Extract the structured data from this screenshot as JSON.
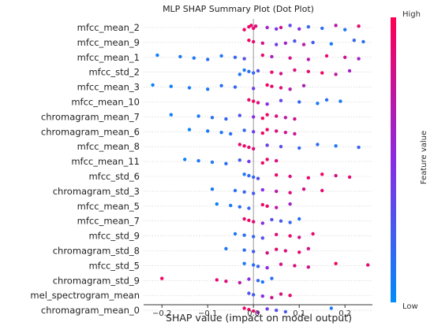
{
  "chart_data": {
    "type": "scatter",
    "title": "MLP SHAP Summary Plot (Dot Plot)",
    "xlabel": "SHAP value (impact on model output)",
    "x_ticks": [
      -0.2,
      -0.1,
      0.0,
      0.1,
      0.2
    ],
    "x_tick_labels": [
      "−0.2",
      "−0.1",
      "0.0",
      "0.1",
      "0.2"
    ],
    "xlim": [
      -0.24,
      0.26
    ],
    "grid": true,
    "colorbar": {
      "high_label": "High",
      "low_label": "Low",
      "title": "Feature value",
      "high_color": "#ff0052",
      "mid_color": "#8a2be2",
      "low_color": "#008bfb"
    },
    "features": [
      "mfcc_mean_2",
      "mfcc_mean_9",
      "mfcc_mean_1",
      "mfcc_std_2",
      "mfcc_mean_3",
      "mfcc_mean_10",
      "chromagram_mean_7",
      "chromagram_mean_6",
      "mfcc_mean_8",
      "mfcc_mean_11",
      "mfcc_std_6",
      "chromagram_std_3",
      "mfcc_mean_5",
      "mfcc_mean_7",
      "mfcc_std_9",
      "chromagram_std_8",
      "mfcc_std_5",
      "chromagram_std_9",
      "mel_spectrogram_mean",
      "chromagram_mean_0"
    ],
    "points": [
      [
        [
          -0.005,
          0.95
        ],
        [
          -0.01,
          0.9
        ],
        [
          0.0,
          0.9
        ],
        [
          -0.02,
          0.95
        ],
        [
          0.005,
          0.85
        ],
        [
          0.03,
          0.6
        ],
        [
          0.05,
          0.45
        ],
        [
          0.08,
          0.35
        ],
        [
          0.12,
          0.2
        ],
        [
          0.15,
          0.15
        ],
        [
          0.2,
          0.1
        ],
        [
          0.23,
          0.9
        ],
        [
          0.06,
          0.8
        ],
        [
          0.1,
          0.5
        ],
        [
          0.18,
          0.7
        ]
      ],
      [
        [
          -0.01,
          0.95
        ],
        [
          0.0,
          0.9
        ],
        [
          0.02,
          0.8
        ],
        [
          0.05,
          0.4
        ],
        [
          0.09,
          0.3
        ],
        [
          0.13,
          0.25
        ],
        [
          0.17,
          0.1
        ],
        [
          0.22,
          0.2
        ],
        [
          0.24,
          0.15
        ],
        [
          0.07,
          0.6
        ],
        [
          0.11,
          0.7
        ]
      ],
      [
        [
          -0.21,
          0.05
        ],
        [
          -0.16,
          0.1
        ],
        [
          -0.13,
          0.1
        ],
        [
          -0.1,
          0.15
        ],
        [
          -0.07,
          0.1
        ],
        [
          -0.04,
          0.2
        ],
        [
          -0.02,
          0.3
        ],
        [
          0.02,
          0.9
        ],
        [
          0.04,
          0.6
        ],
        [
          0.08,
          0.8
        ],
        [
          0.12,
          0.7
        ],
        [
          0.16,
          0.9
        ],
        [
          0.2,
          0.8
        ],
        [
          0.23,
          0.6
        ]
      ],
      [
        [
          -0.02,
          0.1
        ],
        [
          -0.01,
          0.15
        ],
        [
          0.0,
          0.2
        ],
        [
          -0.03,
          0.1
        ],
        [
          0.01,
          0.3
        ],
        [
          0.04,
          0.9
        ],
        [
          0.06,
          0.8
        ],
        [
          0.09,
          0.85
        ],
        [
          0.12,
          0.9
        ],
        [
          0.15,
          0.95
        ],
        [
          0.18,
          0.7
        ],
        [
          0.21,
          0.6
        ]
      ],
      [
        [
          -0.22,
          0.05
        ],
        [
          -0.18,
          0.05
        ],
        [
          -0.14,
          0.1
        ],
        [
          -0.1,
          0.1
        ],
        [
          -0.07,
          0.15
        ],
        [
          -0.04,
          0.2
        ],
        [
          0.0,
          0.4
        ],
        [
          0.03,
          0.95
        ],
        [
          0.04,
          0.9
        ],
        [
          0.06,
          0.85
        ],
        [
          0.08,
          0.7
        ],
        [
          0.11,
          0.65
        ]
      ],
      [
        [
          -0.01,
          0.9
        ],
        [
          0.0,
          0.95
        ],
        [
          0.01,
          0.85
        ],
        [
          0.03,
          0.5
        ],
        [
          0.06,
          0.35
        ],
        [
          0.1,
          0.2
        ],
        [
          0.14,
          0.1
        ],
        [
          0.16,
          0.15
        ],
        [
          0.19,
          0.1
        ]
      ],
      [
        [
          -0.18,
          0.05
        ],
        [
          -0.12,
          0.1
        ],
        [
          -0.09,
          0.15
        ],
        [
          -0.06,
          0.2
        ],
        [
          -0.03,
          0.3
        ],
        [
          0.0,
          0.5
        ],
        [
          0.02,
          0.95
        ],
        [
          0.03,
          0.9
        ],
        [
          0.05,
          0.85
        ],
        [
          0.07,
          0.7
        ],
        [
          0.09,
          0.8
        ]
      ],
      [
        [
          -0.14,
          0.05
        ],
        [
          -0.1,
          0.1
        ],
        [
          -0.07,
          0.1
        ],
        [
          -0.05,
          0.15
        ],
        [
          -0.02,
          0.2
        ],
        [
          0.0,
          0.4
        ],
        [
          0.02,
          0.95
        ],
        [
          0.03,
          0.9
        ],
        [
          0.05,
          0.85
        ],
        [
          0.07,
          0.8
        ],
        [
          0.09,
          0.75
        ]
      ],
      [
        [
          -0.03,
          0.9
        ],
        [
          -0.02,
          0.95
        ],
        [
          -0.01,
          0.9
        ],
        [
          0.0,
          0.85
        ],
        [
          0.03,
          0.4
        ],
        [
          0.06,
          0.3
        ],
        [
          0.1,
          0.2
        ],
        [
          0.14,
          0.15
        ],
        [
          0.18,
          0.1
        ],
        [
          0.23,
          0.2
        ]
      ],
      [
        [
          -0.15,
          0.05
        ],
        [
          -0.12,
          0.1
        ],
        [
          -0.09,
          0.1
        ],
        [
          -0.06,
          0.15
        ],
        [
          -0.03,
          0.25
        ],
        [
          -0.01,
          0.4
        ],
        [
          0.02,
          0.95
        ],
        [
          0.03,
          0.9
        ],
        [
          0.05,
          0.85
        ]
      ],
      [
        [
          -0.02,
          0.1
        ],
        [
          -0.01,
          0.15
        ],
        [
          0.0,
          0.2
        ],
        [
          0.01,
          0.3
        ],
        [
          0.05,
          0.9
        ],
        [
          0.08,
          0.85
        ],
        [
          0.12,
          0.9
        ],
        [
          0.15,
          0.95
        ],
        [
          0.18,
          0.8
        ],
        [
          0.21,
          0.9
        ]
      ],
      [
        [
          -0.09,
          0.1
        ],
        [
          -0.04,
          0.15
        ],
        [
          -0.02,
          0.2
        ],
        [
          0.0,
          0.25
        ],
        [
          0.02,
          0.5
        ],
        [
          0.05,
          0.7
        ],
        [
          0.08,
          0.85
        ],
        [
          0.11,
          0.8
        ],
        [
          0.15,
          0.9
        ]
      ],
      [
        [
          -0.08,
          0.05
        ],
        [
          -0.05,
          0.1
        ],
        [
          -0.03,
          0.15
        ],
        [
          -0.01,
          0.2
        ],
        [
          0.02,
          0.95
        ],
        [
          0.03,
          0.9
        ],
        [
          0.05,
          0.7
        ],
        [
          0.08,
          0.6
        ]
      ],
      [
        [
          -0.02,
          0.9
        ],
        [
          -0.01,
          0.95
        ],
        [
          0.0,
          0.9
        ],
        [
          0.02,
          0.5
        ],
        [
          0.04,
          0.3
        ],
        [
          0.06,
          0.25
        ],
        [
          0.08,
          0.2
        ],
        [
          0.1,
          0.15
        ]
      ],
      [
        [
          -0.04,
          0.1
        ],
        [
          -0.02,
          0.15
        ],
        [
          0.0,
          0.2
        ],
        [
          0.02,
          0.3
        ],
        [
          0.05,
          0.85
        ],
        [
          0.08,
          0.9
        ],
        [
          0.1,
          0.8
        ],
        [
          0.13,
          0.9
        ]
      ],
      [
        [
          -0.06,
          0.1
        ],
        [
          -0.02,
          0.15
        ],
        [
          0.0,
          0.25
        ],
        [
          0.03,
          0.8
        ],
        [
          0.05,
          0.9
        ],
        [
          0.07,
          0.85
        ],
        [
          0.1,
          0.9
        ],
        [
          0.12,
          0.8
        ]
      ],
      [
        [
          -0.02,
          0.1
        ],
        [
          0.0,
          0.15
        ],
        [
          0.01,
          0.2
        ],
        [
          0.03,
          0.5
        ],
        [
          0.06,
          0.8
        ],
        [
          0.09,
          0.85
        ],
        [
          0.12,
          0.8
        ],
        [
          0.18,
          0.95
        ],
        [
          0.25,
          0.9
        ]
      ],
      [
        [
          -0.2,
          0.95
        ],
        [
          -0.08,
          0.9
        ],
        [
          -0.06,
          0.85
        ],
        [
          -0.03,
          0.7
        ],
        [
          -0.01,
          0.5
        ],
        [
          0.01,
          0.2
        ],
        [
          0.02,
          0.1
        ],
        [
          0.04,
          0.15
        ]
      ],
      [
        [
          -0.01,
          0.3
        ],
        [
          0.0,
          0.25
        ],
        [
          0.02,
          0.5
        ],
        [
          0.04,
          0.8
        ],
        [
          0.06,
          0.85
        ],
        [
          0.08,
          0.9
        ]
      ],
      [
        [
          -0.02,
          0.9
        ],
        [
          -0.01,
          0.95
        ],
        [
          0.0,
          0.9
        ],
        [
          0.01,
          0.6
        ],
        [
          0.03,
          0.4
        ],
        [
          0.05,
          0.3
        ],
        [
          0.07,
          0.25
        ],
        [
          0.17,
          0.1
        ]
      ]
    ]
  }
}
